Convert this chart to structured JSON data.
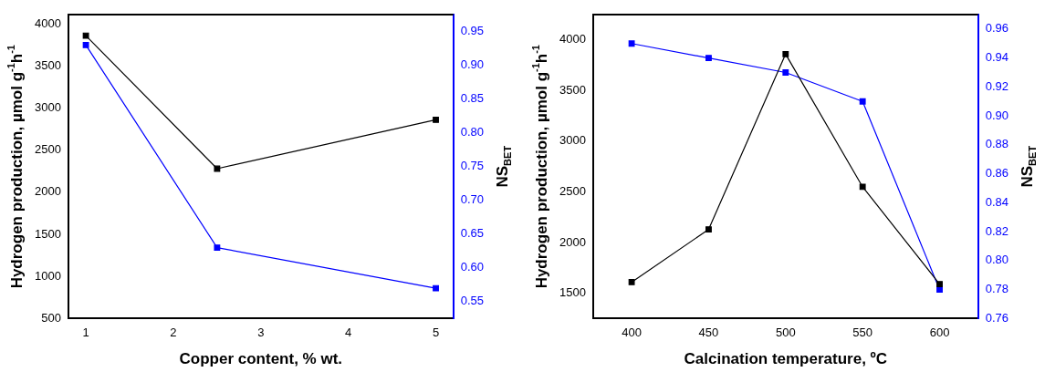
{
  "chart_data": [
    {
      "type": "line",
      "xlabel": "Copper content, % wt.",
      "ylabel": "Hydrogen production, µmol g$^{-1}$h$^{-1}$",
      "y2label": "NS$_{BET}$",
      "x": [
        1,
        2.5,
        5
      ],
      "series": [
        {
          "color": "#000000",
          "values": [
            3860,
            2280,
            2860
          ]
        },
        {
          "color": "#0000ff",
          "values": [
            0.93,
            0.63,
            0.57
          ],
          "axis": "y2"
        }
      ],
      "xlim": [
        0.8,
        5.2
      ],
      "xticks": [
        1,
        2,
        3,
        4,
        5
      ],
      "ylim": [
        500,
        4110
      ],
      "yticks": [
        500,
        1000,
        1500,
        2000,
        2500,
        3000,
        3500,
        4000
      ],
      "y2lim": [
        0.525,
        0.975
      ],
      "y2ticks": [
        0.55,
        {
          "value": 0.6,
          "label": "0.60"
        },
        0.65,
        {
          "value": 0.7,
          "label": "0.70"
        },
        0.75,
        {
          "value": 0.8,
          "label": "0.80"
        },
        0.85,
        {
          "value": 0.9,
          "label": "0.90"
        },
        0.95
      ],
      "grid": false,
      "legend": false,
      "marker": "square",
      "line_style": "solid"
    },
    {
      "type": "line",
      "xlabel": "Calcination temperature, ºC",
      "ylabel": "Hydrogen production, µmol g$^{-1}$h$^{-1}$",
      "y2label": "NS$_{BET}$",
      "x": [
        400,
        450,
        500,
        550,
        600
      ],
      "series": [
        {
          "color": "#000000",
          "values": [
            1610,
            2130,
            3860,
            2550,
            1590
          ]
        },
        {
          "color": "#0000ff",
          "values": [
            0.95,
            0.94,
            0.93,
            0.91,
            0.78
          ],
          "axis": "y2"
        }
      ],
      "xlim": [
        375,
        625
      ],
      "xticks": [
        400,
        450,
        500,
        550,
        600
      ],
      "ylim": [
        1250,
        4250
      ],
      "yticks": [
        1500,
        2000,
        2500,
        3000,
        3500,
        4000
      ],
      "y2lim": [
        0.76,
        0.97
      ],
      "y2ticks": [
        0.76,
        0.78,
        {
          "value": 0.8,
          "label": "0.80"
        },
        0.82,
        0.84,
        0.86,
        0.88,
        {
          "value": 0.9,
          "label": "0.90"
        },
        0.92,
        0.94,
        0.96
      ],
      "grid": false,
      "legend": false,
      "marker": "square",
      "line_style": "solid"
    }
  ]
}
